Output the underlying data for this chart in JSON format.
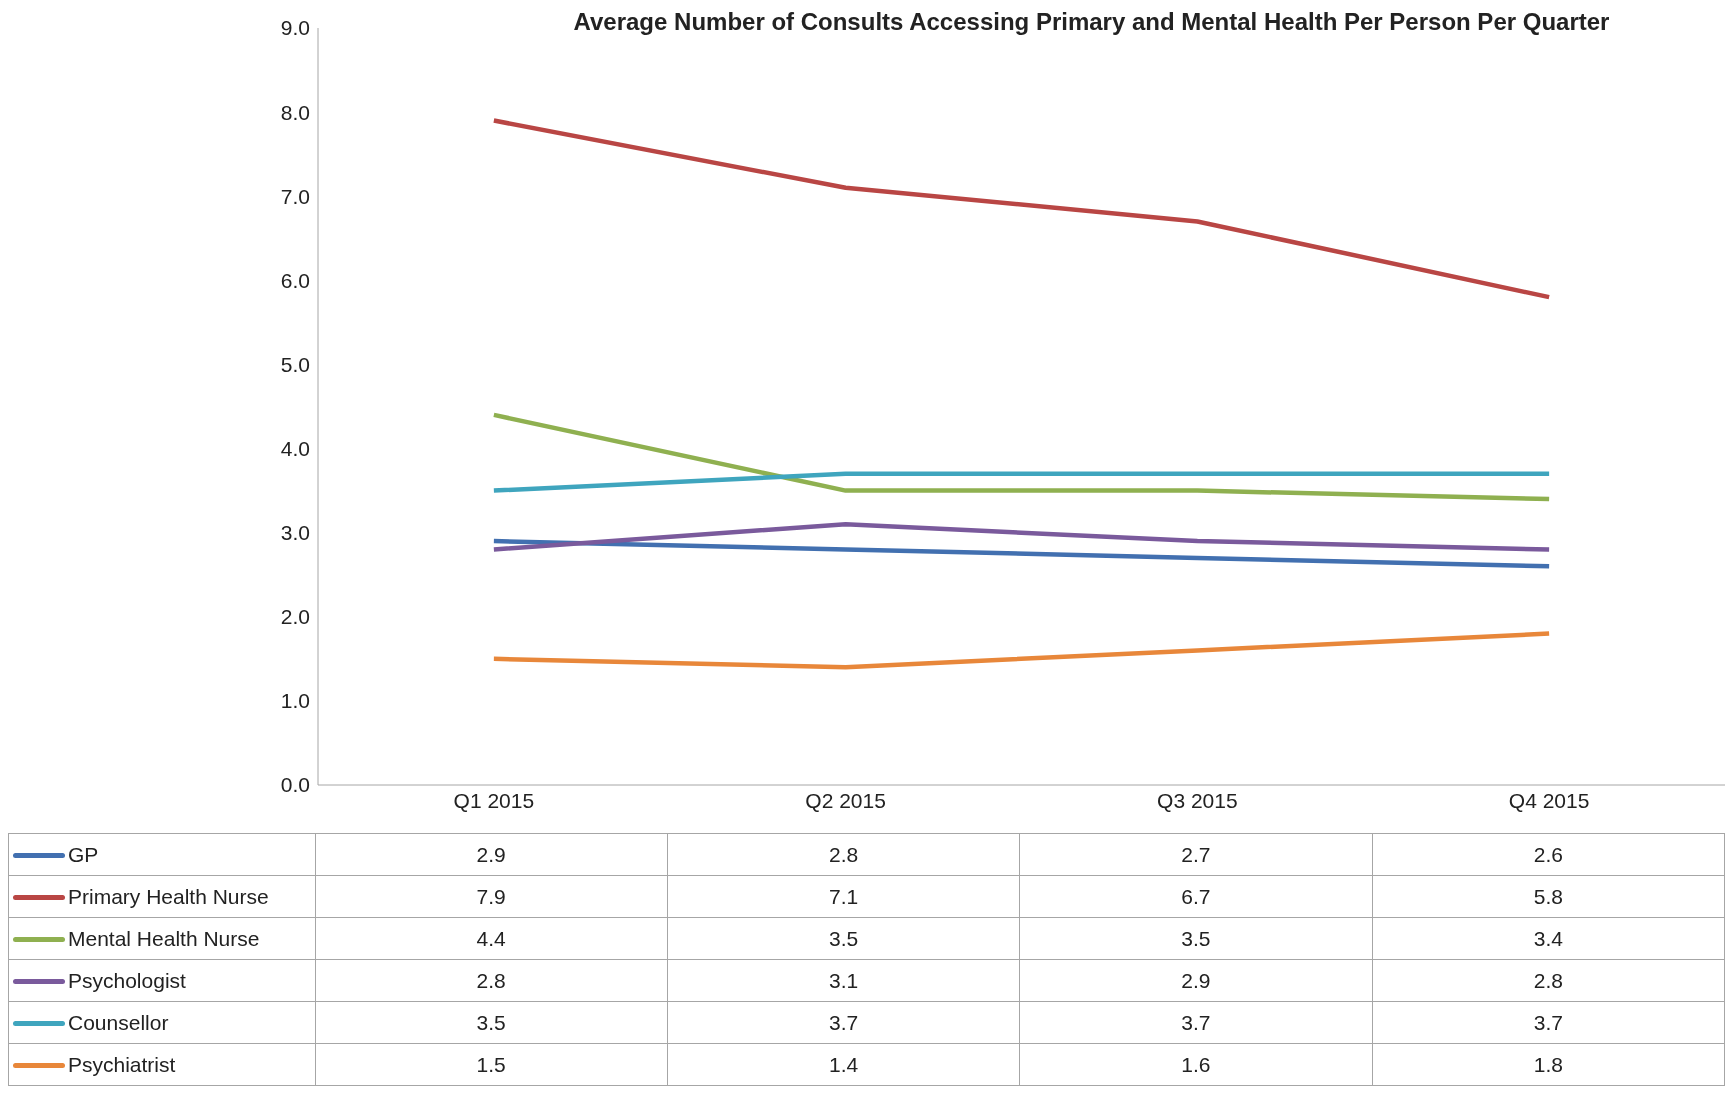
{
  "chart_data": {
    "type": "line",
    "title": "Average Number of Consults Accessing Primary and Mental Health Per Person Per Quarter",
    "categories": [
      "Q1 2015",
      "Q2 2015",
      "Q3 2015",
      "Q4 2015"
    ],
    "series": [
      {
        "name": "GP",
        "color": "#4270b0",
        "values": [
          2.9,
          2.8,
          2.7,
          2.6
        ]
      },
      {
        "name": "Primary Health Nurse",
        "color": "#b94644",
        "values": [
          7.9,
          7.1,
          6.7,
          5.8
        ]
      },
      {
        "name": "Mental Health Nurse",
        "color": "#8fb050",
        "values": [
          4.4,
          3.5,
          3.5,
          3.4
        ]
      },
      {
        "name": "Psychologist",
        "color": "#7a5a9c",
        "values": [
          2.8,
          3.1,
          2.9,
          2.8
        ]
      },
      {
        "name": "Counsellor",
        "color": "#3fa5be",
        "values": [
          3.5,
          3.7,
          3.7,
          3.7
        ]
      },
      {
        "name": "Psychiatrist",
        "color": "#e8873a",
        "values": [
          1.5,
          1.4,
          1.6,
          1.8
        ]
      }
    ],
    "ylim": [
      0,
      9
    ],
    "yticks": [
      {
        "value": 0,
        "label": "0.0"
      },
      {
        "value": 1,
        "label": "1.0"
      },
      {
        "value": 2,
        "label": "2.0"
      },
      {
        "value": 3,
        "label": "3.0"
      },
      {
        "value": 4,
        "label": "4.0"
      },
      {
        "value": 5,
        "label": "5.0"
      },
      {
        "value": 6,
        "label": "6.0"
      },
      {
        "value": 7,
        "label": "7.0"
      },
      {
        "value": 8,
        "label": "8.0"
      },
      {
        "value": 9,
        "label": "9.0"
      }
    ],
    "marker": "none",
    "line_style": "solid",
    "legend": "bottom",
    "data_labels": true
  }
}
